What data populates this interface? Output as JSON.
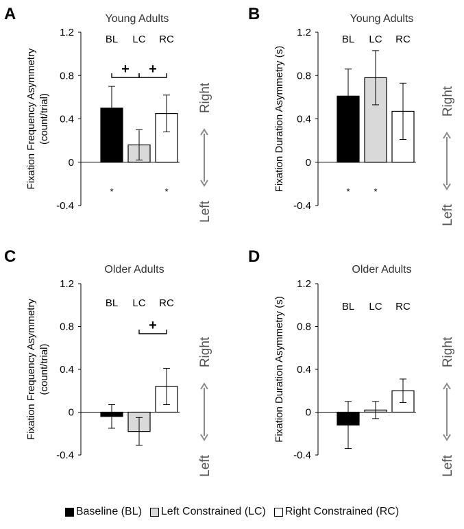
{
  "figure": {
    "colors": {
      "BL": "#000000",
      "LC": "#d9d9d9",
      "RC": "#ffffff",
      "arrow": "#8a8a8a"
    },
    "direction_labels": {
      "up": "Right",
      "down": "Left"
    },
    "legend": [
      {
        "key": "BL",
        "label": "Baseline (BL)"
      },
      {
        "key": "LC",
        "label": "Left Constrained (LC)"
      },
      {
        "key": "RC",
        "label": "Right Constrained (RC)"
      }
    ]
  },
  "chart_data": [
    {
      "panel": "A",
      "type": "bar",
      "title": "Young Adults",
      "ylabel": [
        "Fixation Frequency Asymmetry",
        "(count/trial)"
      ],
      "ylim": [
        -0.4,
        1.2
      ],
      "yticks": [
        -0.4,
        0,
        0.4,
        0.8,
        1.2
      ],
      "ytick_labels": [
        "-0.4",
        "0",
        "0.4",
        "0.8",
        "1.2"
      ],
      "categories": [
        "BL",
        "LC",
        "RC"
      ],
      "values": [
        0.5,
        0.16,
        0.45
      ],
      "errors": [
        0.2,
        0.14,
        0.17
      ],
      "stars": [
        "*",
        "",
        "*"
      ],
      "brackets": [
        {
          "from": 0,
          "to": 1,
          "label": "+"
        },
        {
          "from": 1,
          "to": 2,
          "label": "+"
        }
      ]
    },
    {
      "panel": "B",
      "type": "bar",
      "title": "Young Adults",
      "ylabel": [
        "Fixation Duration Asymmetry (s)"
      ],
      "ylim": [
        -0.4,
        1.2
      ],
      "yticks": [
        -0.4,
        0,
        0.4,
        0.8,
        1.2
      ],
      "ytick_labels": [
        "-0.4",
        "0",
        "0.4",
        "0.8",
        "1.2"
      ],
      "categories": [
        "BL",
        "LC",
        "RC"
      ],
      "values": [
        0.61,
        0.78,
        0.47
      ],
      "errors": [
        0.25,
        0.25,
        0.26
      ],
      "stars": [
        "*",
        "*",
        ""
      ],
      "brackets": []
    },
    {
      "panel": "C",
      "type": "bar",
      "title": "Older Adults",
      "ylabel": [
        "Fixation Frequency Asymmetry",
        "(count/trial)"
      ],
      "ylim": [
        -0.4,
        1.2
      ],
      "yticks": [
        -0.4,
        0,
        0.4,
        0.8,
        1.2
      ],
      "ytick_labels": [
        "-0.4",
        "0",
        "0.4",
        "0.8",
        "1.2"
      ],
      "categories": [
        "BL",
        "LC",
        "RC"
      ],
      "values": [
        -0.04,
        -0.18,
        0.24
      ],
      "errors": [
        0.11,
        0.13,
        0.17
      ],
      "stars": [
        "",
        "",
        ""
      ],
      "brackets": [
        {
          "from": 1,
          "to": 2,
          "label": "+"
        }
      ]
    },
    {
      "panel": "D",
      "type": "bar",
      "title": "Older Adults",
      "ylabel": [
        "Fixation Duration Asymmetry (s)"
      ],
      "ylim": [
        -0.4,
        1.2
      ],
      "yticks": [
        -0.4,
        0,
        0.4,
        0.8,
        1.2
      ],
      "ytick_labels": [
        "-0.4",
        "0",
        "0.4",
        "0.8",
        "1.2"
      ],
      "categories": [
        "BL",
        "LC",
        "RC"
      ],
      "values": [
        -0.12,
        0.02,
        0.2
      ],
      "errors": [
        0.22,
        0.08,
        0.11
      ],
      "stars": [
        "",
        "",
        ""
      ],
      "brackets": []
    }
  ]
}
